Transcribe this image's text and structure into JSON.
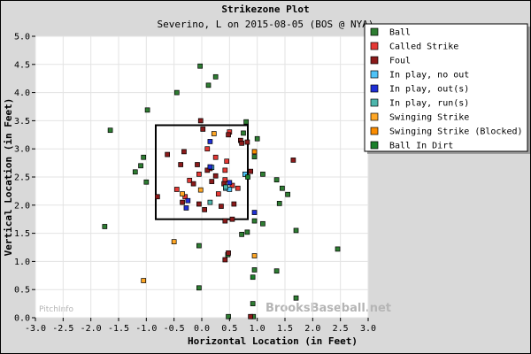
{
  "chart_data": {
    "type": "scatter",
    "title": "Strikezone Plot",
    "subtitle": "Severino, L on 2015-08-05 (BOS @ NYA)",
    "xlabel": "Horizontal Location (in Feet)",
    "ylabel": "Vertical Location (in Feet)",
    "xlim": [
      -3.0,
      3.0
    ],
    "ylim": [
      0.0,
      5.0
    ],
    "x_ticks": [
      "-3.0",
      "-2.5",
      "-2.0",
      "-1.5",
      "-1.0",
      "-0.5",
      "0.0",
      "0.5",
      "1.0",
      "1.5",
      "2.0",
      "2.5",
      "3.0"
    ],
    "y_ticks": [
      "0.0",
      "0.5",
      "1.0",
      "1.5",
      "2.0",
      "2.5",
      "3.0",
      "3.5",
      "4.0",
      "4.5",
      "5.0"
    ],
    "strike_zone": {
      "x": [
        -0.83,
        0.83
      ],
      "y": [
        1.75,
        3.42
      ]
    },
    "legend_position": "top-right",
    "watermark_left": "PitchInfo",
    "watermark_right": "BrooksBaseball.net",
    "series": [
      {
        "name": "Ball",
        "color": "#2e7d32",
        "points": [
          [
            -0.03,
            4.47
          ],
          [
            0.25,
            4.28
          ],
          [
            0.12,
            4.13
          ],
          [
            -0.45,
            4.0
          ],
          [
            -0.98,
            3.69
          ],
          [
            -1.65,
            3.33
          ],
          [
            -1.05,
            2.85
          ],
          [
            -1.1,
            2.7
          ],
          [
            -1.2,
            2.59
          ],
          [
            -1.0,
            2.41
          ],
          [
            -1.75,
            1.62
          ],
          [
            0.8,
            3.48
          ],
          [
            1.0,
            3.18
          ],
          [
            0.95,
            2.86
          ],
          [
            1.1,
            2.55
          ],
          [
            1.35,
            2.45
          ],
          [
            1.55,
            2.19
          ],
          [
            1.45,
            2.3
          ],
          [
            1.4,
            2.03
          ],
          [
            0.95,
            1.72
          ],
          [
            1.1,
            1.67
          ],
          [
            0.82,
            1.52
          ],
          [
            0.72,
            1.48
          ],
          [
            1.7,
            1.55
          ],
          [
            2.45,
            1.22
          ],
          [
            -0.05,
            1.28
          ],
          [
            0.47,
            1.12
          ],
          [
            0.95,
            0.85
          ],
          [
            1.35,
            0.83
          ],
          [
            -0.05,
            0.53
          ],
          [
            0.92,
            0.25
          ],
          [
            0.48,
            0.02
          ],
          [
            0.93,
            0.02
          ],
          [
            1.7,
            0.35
          ],
          [
            0.75,
            3.28
          ]
        ]
      },
      {
        "name": "Called Strike",
        "color": "#e53935",
        "points": [
          [
            0.5,
            3.3
          ],
          [
            0.1,
            3.0
          ],
          [
            0.25,
            2.85
          ],
          [
            0.45,
            2.78
          ],
          [
            0.15,
            2.65
          ],
          [
            -0.05,
            2.55
          ],
          [
            0.42,
            2.62
          ],
          [
            0.42,
            2.45
          ],
          [
            0.55,
            2.35
          ],
          [
            0.3,
            2.2
          ],
          [
            -0.3,
            2.15
          ],
          [
            -0.45,
            2.28
          ],
          [
            0.65,
            2.3
          ],
          [
            0.78,
            2.55
          ],
          [
            -0.22,
            2.44
          ]
        ]
      },
      {
        "name": "Foul",
        "color": "#8b1a1a",
        "points": [
          [
            -0.02,
            3.5
          ],
          [
            0.02,
            3.35
          ],
          [
            0.48,
            3.25
          ],
          [
            0.82,
            3.12
          ],
          [
            0.7,
            3.15
          ],
          [
            -0.62,
            2.9
          ],
          [
            -0.32,
            2.95
          ],
          [
            -0.38,
            2.72
          ],
          [
            0.1,
            2.62
          ],
          [
            -0.08,
            2.72
          ],
          [
            0.25,
            2.52
          ],
          [
            0.4,
            2.38
          ],
          [
            0.18,
            2.42
          ],
          [
            -0.15,
            2.38
          ],
          [
            0.58,
            2.02
          ],
          [
            -0.35,
            2.05
          ],
          [
            -0.05,
            2.02
          ],
          [
            0.05,
            1.92
          ],
          [
            0.42,
            1.72
          ],
          [
            0.55,
            1.75
          ],
          [
            0.48,
            1.15
          ],
          [
            0.42,
            1.03
          ],
          [
            0.88,
            0.02
          ],
          [
            0.88,
            2.6
          ],
          [
            1.65,
            2.8
          ],
          [
            -0.8,
            2.15
          ],
          [
            0.35,
            1.98
          ],
          [
            0.72,
            3.1
          ]
        ]
      },
      {
        "name": "In play, no out",
        "color": "#4fc3f7",
        "points": [
          [
            0.78,
            2.55
          ],
          [
            0.43,
            2.3
          ],
          [
            0.18,
            2.67
          ],
          [
            0.5,
            2.28
          ]
        ]
      },
      {
        "name": "In play, out(s)",
        "color": "#1f2fd6",
        "points": [
          [
            0.15,
            3.13
          ],
          [
            0.95,
            1.87
          ],
          [
            -0.28,
            1.95
          ],
          [
            0.5,
            2.4
          ],
          [
            -0.25,
            2.08
          ],
          [
            0.15,
            2.68
          ]
        ]
      },
      {
        "name": "In play, run(s)",
        "color": "#4db6ac",
        "points": [
          [
            0.43,
            2.32
          ],
          [
            0.15,
            2.05
          ]
        ]
      },
      {
        "name": "Swinging Strike",
        "color": "#ffa726",
        "points": [
          [
            0.22,
            3.27
          ],
          [
            -0.5,
            1.35
          ],
          [
            0.95,
            1.1
          ],
          [
            -1.05,
            0.66
          ],
          [
            -0.35,
            2.2
          ],
          [
            -0.02,
            2.27
          ]
        ]
      },
      {
        "name": "Swinging Strike (Blocked)",
        "color": "#fb8c00",
        "points": [
          [
            0.95,
            2.95
          ]
        ]
      },
      {
        "name": "Ball In Dirt",
        "color": "#1b7f2a",
        "points": [
          [
            0.83,
            2.5
          ],
          [
            0.92,
            0.72
          ]
        ]
      }
    ]
  }
}
